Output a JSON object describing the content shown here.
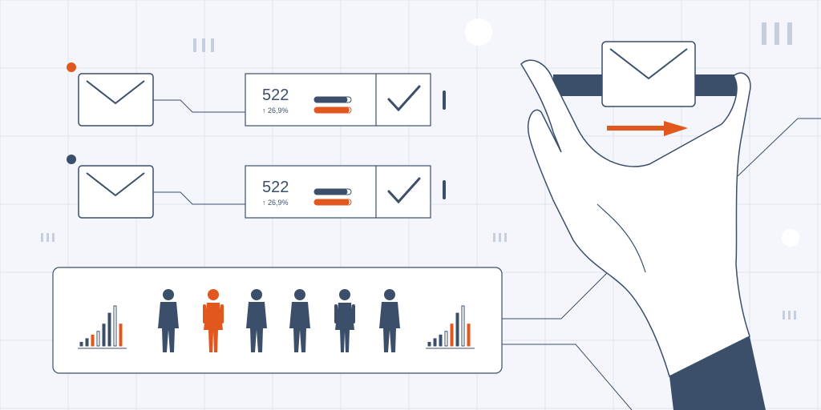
{
  "colors": {
    "background": "#f4f6fb",
    "grid": "#dfe4ee",
    "navy": "#3b4f6b",
    "orange": "#e2571e",
    "card": "#ffffff"
  },
  "rows": [
    {
      "dot_color": "#e2571e",
      "value": "522",
      "change": "↑ 26,9%",
      "bar_top_fill": 0.9,
      "bar_bottom_fill": 0.95
    },
    {
      "dot_color": "#3b4f6b",
      "value": "522",
      "change": "↑ 26,9%",
      "bar_top_fill": 0.9,
      "bar_bottom_fill": 0.95
    }
  ],
  "people_panel": {
    "people": [
      {
        "kind": "man",
        "color": "#3b4f6b"
      },
      {
        "kind": "woman",
        "color": "#e2571e"
      },
      {
        "kind": "man",
        "color": "#3b4f6b"
      },
      {
        "kind": "man",
        "color": "#3b4f6b"
      },
      {
        "kind": "woman",
        "color": "#3b4f6b"
      },
      {
        "kind": "man",
        "color": "#3b4f6b"
      }
    ],
    "left_histogram": [
      1,
      2,
      3,
      4,
      6,
      9,
      11,
      6
    ],
    "right_histogram": [
      1,
      2,
      3,
      4,
      6,
      9,
      11,
      6
    ],
    "left_histogram_colors": [
      "#3b4f6b",
      "#3b4f6b",
      "#e2571e",
      "#3b4f6b",
      "#3b4f6b",
      "#3b4f6b",
      "#3b4f6b",
      "#e2571e"
    ],
    "right_histogram_colors": [
      "#3b4f6b",
      "#3b4f6b",
      "#3b4f6b",
      "#3b4f6b",
      "#e2571e",
      "#3b4f6b",
      "#3b4f6b",
      "#e2571e"
    ]
  },
  "icons": {
    "envelope": "envelope-icon",
    "check": "checkmark-icon",
    "hand": "hand-icon",
    "arrow": "arrow-right-icon"
  }
}
